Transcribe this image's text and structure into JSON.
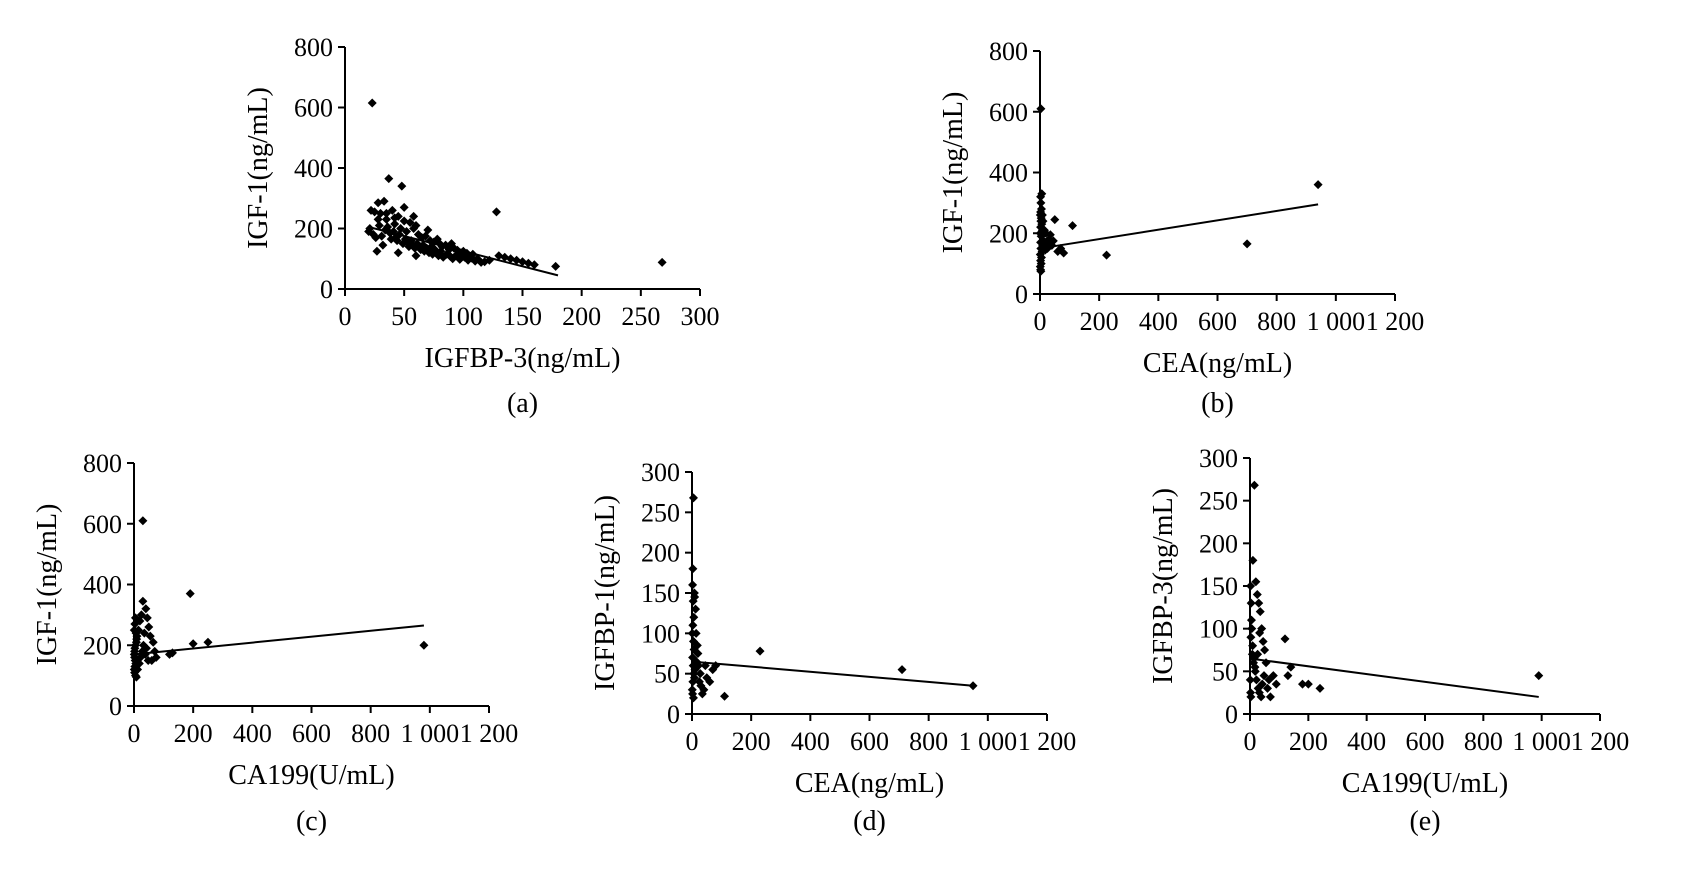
{
  "chart_data": [
    {
      "type": "scatter",
      "panel_label": "(a)",
      "xlabel": "IGFBP-3(ng/mL)",
      "ylabel": "IGF-1(ng/mL)",
      "xlim": [
        0,
        300
      ],
      "ylim": [
        0,
        800
      ],
      "xticks": [
        "0",
        "50",
        "100",
        "150",
        "200",
        "250",
        "300"
      ],
      "yticks": [
        "0",
        "200",
        "400",
        "600",
        "800"
      ],
      "trendline": [
        [
          20,
          205
        ],
        [
          180,
          45
        ]
      ],
      "points": [
        [
          23,
          615
        ],
        [
          37,
          365
        ],
        [
          48,
          340
        ],
        [
          128,
          255
        ],
        [
          268,
          88
        ],
        [
          22,
          260
        ],
        [
          25,
          255
        ],
        [
          28,
          285
        ],
        [
          30,
          250
        ],
        [
          33,
          290
        ],
        [
          35,
          230
        ],
        [
          40,
          260
        ],
        [
          42,
          215
        ],
        [
          45,
          240
        ],
        [
          47,
          200
        ],
        [
          50,
          270
        ],
        [
          52,
          190
        ],
        [
          55,
          220
        ],
        [
          58,
          200
        ],
        [
          60,
          210
        ],
        [
          62,
          180
        ],
        [
          65,
          170
        ],
        [
          68,
          175
        ],
        [
          70,
          195
        ],
        [
          72,
          160
        ],
        [
          75,
          155
        ],
        [
          78,
          165
        ],
        [
          80,
          150
        ],
        [
          82,
          140
        ],
        [
          85,
          145
        ],
        [
          88,
          130
        ],
        [
          90,
          150
        ],
        [
          92,
          135
        ],
        [
          95,
          128
        ],
        [
          98,
          120
        ],
        [
          100,
          125
        ],
        [
          103,
          118
        ],
        [
          105,
          110
        ],
        [
          108,
          115
        ],
        [
          112,
          100
        ],
        [
          118,
          90
        ],
        [
          122,
          95
        ],
        [
          130,
          110
        ],
        [
          135,
          105
        ],
        [
          140,
          100
        ],
        [
          145,
          95
        ],
        [
          150,
          90
        ],
        [
          155,
          85
        ],
        [
          160,
          80
        ],
        [
          178,
          75
        ],
        [
          20,
          190
        ],
        [
          21,
          200
        ],
        [
          24,
          180
        ],
        [
          26,
          170
        ],
        [
          29,
          210
        ],
        [
          31,
          175
        ],
        [
          34,
          195
        ],
        [
          36,
          205
        ],
        [
          38,
          185
        ],
        [
          39,
          165
        ],
        [
          41,
          190
        ],
        [
          43,
          170
        ],
        [
          44,
          160
        ],
        [
          46,
          180
        ],
        [
          49,
          150
        ],
        [
          51,
          165
        ],
        [
          53,
          155
        ],
        [
          54,
          140
        ],
        [
          56,
          160
        ],
        [
          57,
          145
        ],
        [
          59,
          135
        ],
        [
          61,
          150
        ],
        [
          63,
          140
        ],
        [
          64,
          130
        ],
        [
          66,
          145
        ],
        [
          67,
          125
        ],
        [
          69,
          135
        ],
        [
          71,
          120
        ],
        [
          73,
          140
        ],
        [
          74,
          115
        ],
        [
          76,
          130
        ],
        [
          77,
          120
        ],
        [
          79,
          110
        ],
        [
          81,
          125
        ],
        [
          83,
          105
        ],
        [
          86,
          115
        ],
        [
          89,
          108
        ],
        [
          91,
          100
        ],
        [
          94,
          112
        ],
        [
          97,
          98
        ],
        [
          101,
          105
        ],
        [
          104,
          95
        ],
        [
          107,
          102
        ],
        [
          110,
          92
        ],
        [
          115,
          88
        ],
        [
          27,
          125
        ],
        [
          32,
          145
        ],
        [
          45,
          120
        ],
        [
          60,
          110
        ],
        [
          28,
          230
        ],
        [
          35,
          250
        ],
        [
          42,
          235
        ],
        [
          50,
          225
        ],
        [
          58,
          240
        ]
      ]
    },
    {
      "type": "scatter",
      "panel_label": "(b)",
      "xlabel": "CEA(ng/mL)",
      "ylabel": "IGF-1(ng/mL)",
      "xlim": [
        0,
        1200
      ],
      "ylim": [
        0,
        800
      ],
      "xticks": [
        "0",
        "200",
        "400",
        "600",
        "800",
        "1 000",
        "1 200"
      ],
      "yticks": [
        "0",
        "200",
        "400",
        "600",
        "800"
      ],
      "trendline": [
        [
          0,
          150
        ],
        [
          940,
          295
        ]
      ],
      "points": [
        [
          3,
          610
        ],
        [
          940,
          360
        ],
        [
          700,
          165
        ],
        [
          225,
          128
        ],
        [
          110,
          225
        ],
        [
          50,
          245
        ],
        [
          80,
          135
        ],
        [
          30,
          180
        ],
        [
          40,
          160
        ],
        [
          20,
          200
        ],
        [
          15,
          210
        ],
        [
          10,
          240
        ],
        [
          5,
          280
        ],
        [
          3,
          300
        ],
        [
          6,
          330
        ],
        [
          2,
          320
        ],
        [
          8,
          260
        ],
        [
          4,
          190
        ],
        [
          2,
          170
        ],
        [
          3,
          150
        ],
        [
          1,
          130
        ],
        [
          2,
          110
        ],
        [
          4,
          100
        ],
        [
          1,
          90
        ],
        [
          2,
          80
        ],
        [
          3,
          75
        ],
        [
          5,
          120
        ],
        [
          7,
          140
        ],
        [
          9,
          160
        ],
        [
          12,
          175
        ],
        [
          14,
          155
        ],
        [
          18,
          145
        ],
        [
          22,
          170
        ],
        [
          25,
          150
        ],
        [
          28,
          165
        ],
        [
          35,
          195
        ],
        [
          60,
          140
        ],
        [
          70,
          150
        ],
        [
          45,
          175
        ],
        [
          1,
          200
        ],
        [
          2,
          220
        ],
        [
          3,
          240
        ],
        [
          1,
          260
        ],
        [
          2,
          270
        ],
        [
          4,
          250
        ],
        [
          6,
          230
        ],
        [
          8,
          210
        ]
      ]
    },
    {
      "type": "scatter",
      "panel_label": "(c)",
      "xlabel": "CA199(U/mL)",
      "ylabel": "IGF-1(ng/mL)",
      "xlim": [
        0,
        1200
      ],
      "ylim": [
        0,
        800
      ],
      "xticks": [
        "0",
        "200",
        "400",
        "600",
        "800",
        "1 000",
        "1 200"
      ],
      "yticks": [
        "0",
        "200",
        "400",
        "600",
        "800"
      ],
      "trendline": [
        [
          0,
          170
        ],
        [
          980,
          265
        ]
      ],
      "points": [
        [
          30,
          610
        ],
        [
          190,
          370
        ],
        [
          980,
          200
        ],
        [
          250,
          210
        ],
        [
          200,
          205
        ],
        [
          130,
          175
        ],
        [
          120,
          170
        ],
        [
          70,
          180
        ],
        [
          60,
          150
        ],
        [
          50,
          260
        ],
        [
          40,
          320
        ],
        [
          30,
          345
        ],
        [
          25,
          300
        ],
        [
          45,
          290
        ],
        [
          55,
          230
        ],
        [
          35,
          240
        ],
        [
          20,
          280
        ],
        [
          15,
          250
        ],
        [
          10,
          230
        ],
        [
          8,
          210
        ],
        [
          5,
          200
        ],
        [
          3,
          190
        ],
        [
          2,
          180
        ],
        [
          1,
          170
        ],
        [
          2,
          160
        ],
        [
          4,
          150
        ],
        [
          6,
          140
        ],
        [
          3,
          130
        ],
        [
          1,
          120
        ],
        [
          2,
          110
        ],
        [
          5,
          100
        ],
        [
          8,
          95
        ],
        [
          12,
          120
        ],
        [
          18,
          140
        ],
        [
          22,
          160
        ],
        [
          28,
          180
        ],
        [
          32,
          200
        ],
        [
          38,
          170
        ],
        [
          42,
          190
        ],
        [
          48,
          150
        ],
        [
          65,
          210
        ],
        [
          75,
          160
        ],
        [
          1,
          250
        ],
        [
          3,
          270
        ],
        [
          5,
          290
        ],
        [
          7,
          240
        ],
        [
          9,
          220
        ]
      ]
    },
    {
      "type": "scatter",
      "panel_label": "(d)",
      "xlabel": "CEA(ng/mL)",
      "ylabel": "IGFBP-1(ng/mL)",
      "xlim": [
        0,
        1200
      ],
      "ylim": [
        0,
        300
      ],
      "xticks": [
        "0",
        "200",
        "400",
        "600",
        "800",
        "1 000",
        "1 200"
      ],
      "yticks": [
        "0",
        "50",
        "100",
        "150",
        "200",
        "250",
        "300"
      ],
      "trendline": [
        [
          0,
          65
        ],
        [
          950,
          35
        ]
      ],
      "points": [
        [
          5,
          268
        ],
        [
          3,
          180
        ],
        [
          8,
          150
        ],
        [
          2,
          160
        ],
        [
          4,
          140
        ],
        [
          6,
          120
        ],
        [
          3,
          110
        ],
        [
          1,
          100
        ],
        [
          5,
          90
        ],
        [
          7,
          80
        ],
        [
          2,
          70
        ],
        [
          4,
          60
        ],
        [
          6,
          50
        ],
        [
          3,
          40
        ],
        [
          1,
          30
        ],
        [
          2,
          25
        ],
        [
          5,
          20
        ],
        [
          8,
          45
        ],
        [
          10,
          55
        ],
        [
          15,
          65
        ],
        [
          20,
          75
        ],
        [
          25,
          40
        ],
        [
          30,
          35
        ],
        [
          40,
          30
        ],
        [
          50,
          45
        ],
        [
          70,
          55
        ],
        [
          110,
          22
        ],
        [
          230,
          78
        ],
        [
          710,
          55
        ],
        [
          950,
          35
        ],
        [
          12,
          130
        ],
        [
          9,
          145
        ],
        [
          14,
          100
        ],
        [
          18,
          85
        ],
        [
          22,
          60
        ],
        [
          28,
          50
        ],
        [
          35,
          25
        ],
        [
          45,
          60
        ],
        [
          60,
          40
        ],
        [
          80,
          60
        ]
      ]
    },
    {
      "type": "scatter",
      "panel_label": "(e)",
      "xlabel": "CA199(U/mL)",
      "ylabel": "IGFBP-3(ng/mL)",
      "xlim": [
        0,
        1200
      ],
      "ylim": [
        0,
        300
      ],
      "xticks": [
        "0",
        "200",
        "400",
        "600",
        "800",
        "1 000",
        "1 200"
      ],
      "yticks": [
        "0",
        "50",
        "100",
        "150",
        "200",
        "250",
        "300"
      ],
      "trendline": [
        [
          0,
          65
        ],
        [
          990,
          20
        ]
      ],
      "points": [
        [
          15,
          268
        ],
        [
          10,
          180
        ],
        [
          20,
          155
        ],
        [
          25,
          140
        ],
        [
          30,
          130
        ],
        [
          35,
          120
        ],
        [
          40,
          100
        ],
        [
          45,
          85
        ],
        [
          50,
          75
        ],
        [
          5,
          110
        ],
        [
          3,
          90
        ],
        [
          8,
          70
        ],
        [
          12,
          60
        ],
        [
          18,
          50
        ],
        [
          22,
          40
        ],
        [
          28,
          30
        ],
        [
          32,
          25
        ],
        [
          38,
          20
        ],
        [
          42,
          35
        ],
        [
          48,
          45
        ],
        [
          55,
          60
        ],
        [
          60,
          30
        ],
        [
          70,
          20
        ],
        [
          80,
          45
        ],
        [
          120,
          88
        ],
        [
          130,
          45
        ],
        [
          140,
          55
        ],
        [
          180,
          35
        ],
        [
          200,
          35
        ],
        [
          240,
          30
        ],
        [
          990,
          45
        ],
        [
          2,
          150
        ],
        [
          4,
          130
        ],
        [
          6,
          100
        ],
        [
          9,
          80
        ],
        [
          14,
          65
        ],
        [
          17,
          55
        ],
        [
          26,
          70
        ],
        [
          33,
          95
        ],
        [
          1,
          40
        ],
        [
          2,
          25
        ],
        [
          3,
          20
        ],
        [
          65,
          40
        ],
        [
          90,
          35
        ]
      ]
    }
  ]
}
